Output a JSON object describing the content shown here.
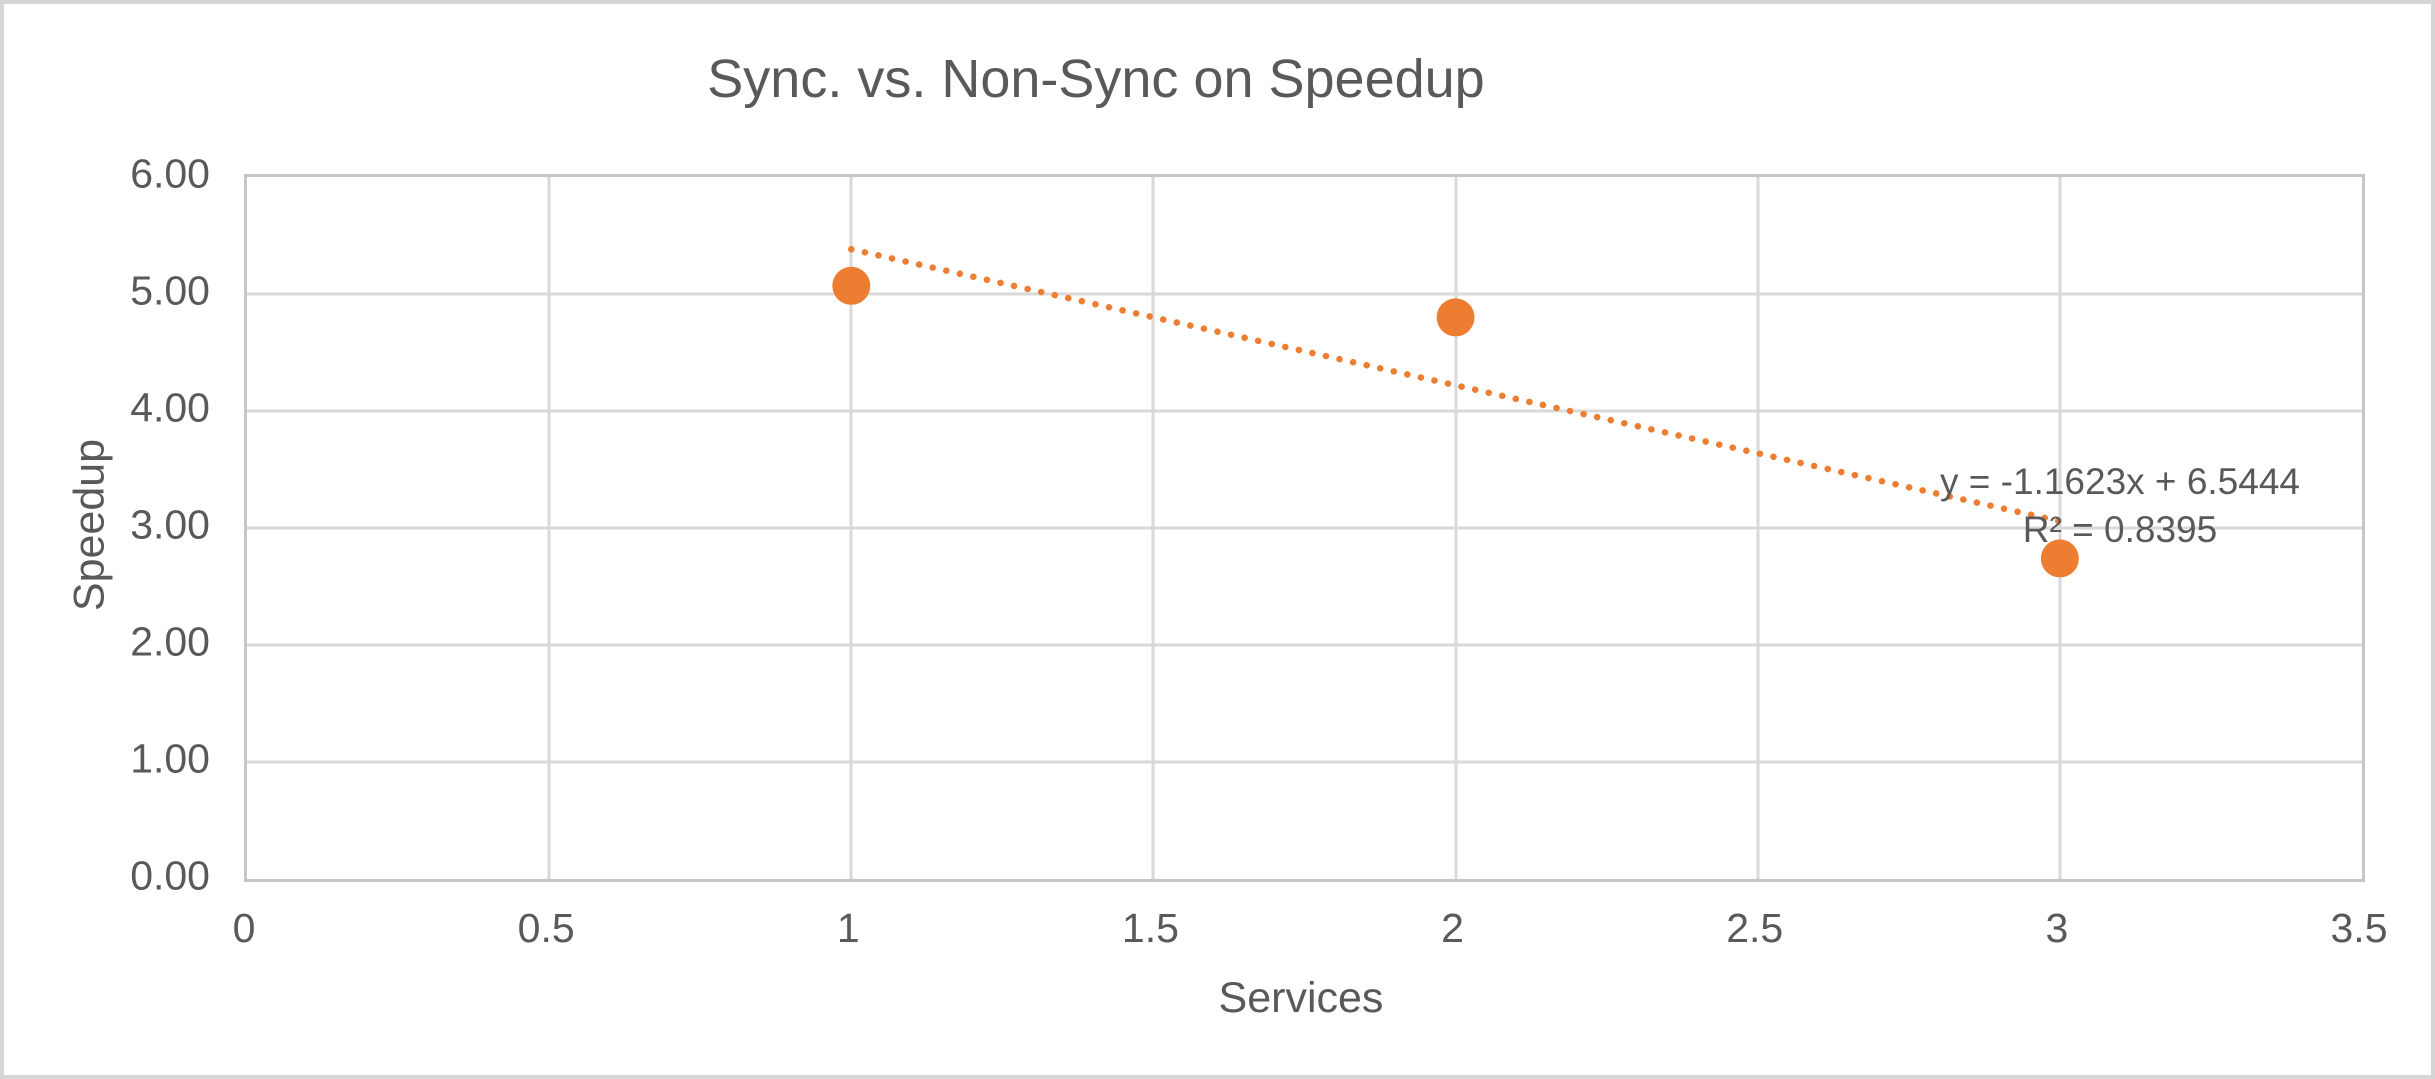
{
  "chart_data": {
    "type": "scatter",
    "title": "Sync. vs. Non-Sync on Speedup",
    "xlabel": "Services",
    "ylabel": "Speedup",
    "xlim": [
      0,
      3.5
    ],
    "ylim": [
      0,
      6
    ],
    "grid": true,
    "legend": "none",
    "x_ticks": [
      {
        "value": 0,
        "label": "0"
      },
      {
        "value": 0.5,
        "label": "0.5"
      },
      {
        "value": 1,
        "label": "1"
      },
      {
        "value": 1.5,
        "label": "1.5"
      },
      {
        "value": 2,
        "label": "2"
      },
      {
        "value": 2.5,
        "label": "2.5"
      },
      {
        "value": 3,
        "label": "3"
      },
      {
        "value": 3.5,
        "label": "3.5"
      }
    ],
    "y_ticks": [
      {
        "value": 0,
        "label": "0.00"
      },
      {
        "value": 1,
        "label": "1.00"
      },
      {
        "value": 2,
        "label": "2.00"
      },
      {
        "value": 3,
        "label": "3.00"
      },
      {
        "value": 4,
        "label": "4.00"
      },
      {
        "value": 5,
        "label": "5.00"
      },
      {
        "value": 6,
        "label": "6.00"
      }
    ],
    "series": [
      {
        "name": "Speedup",
        "marker": "circle",
        "marker_radius": 19,
        "color": "#ED7D31",
        "points": [
          {
            "x": 1,
            "y": 5.07
          },
          {
            "x": 2,
            "y": 4.8
          },
          {
            "x": 3,
            "y": 2.74
          }
        ]
      }
    ],
    "trendline": {
      "style": "dotted",
      "color": "#ED7D31",
      "slope": -1.1623,
      "intercept": 6.5444,
      "x_range": [
        1,
        3
      ],
      "equation_label": "y = -1.1623x + 6.5444",
      "r2_label": "R² = 0.8395"
    },
    "colors": {
      "series": "#ED7D31",
      "gridline": "#D9D9D9",
      "plot_border": "#C6C6C6",
      "text": "#595959",
      "frame_border": "#D6D6D6"
    }
  }
}
